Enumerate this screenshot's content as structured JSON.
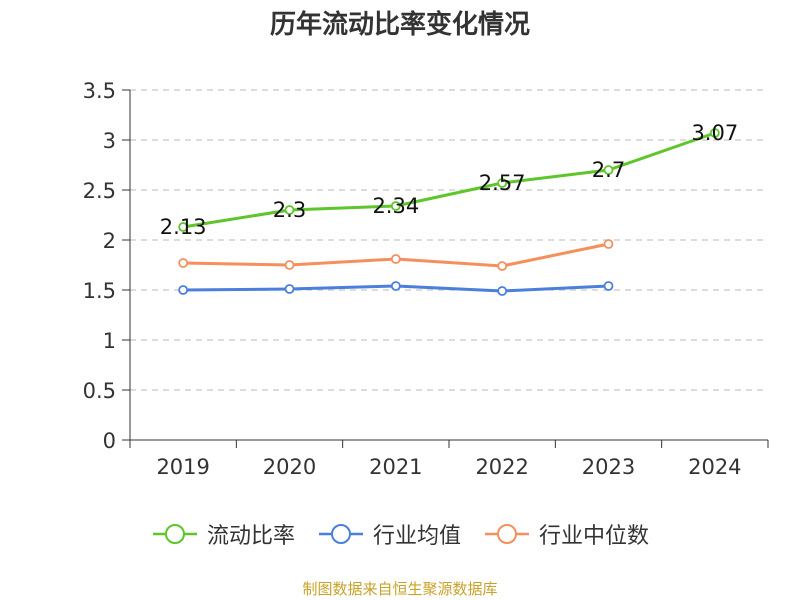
{
  "chart_data": {
    "type": "line",
    "title": "历年流动比率变化情况",
    "categories": [
      "2019",
      "2020",
      "2021",
      "2022",
      "2023",
      "2024"
    ],
    "ylim": [
      0,
      3.5
    ],
    "yticks": [
      "0",
      "0.5",
      "1",
      "1.5",
      "2",
      "2.5",
      "3",
      "3.5"
    ],
    "grid": true,
    "legend_position": "bottom",
    "series": [
      {
        "name": "流动比率",
        "color": "#5ec52b",
        "values": [
          2.13,
          2.3,
          2.34,
          2.57,
          2.7,
          3.07
        ],
        "labels": [
          "2.13",
          "2.3",
          "2.34",
          "2.57",
          "2.7",
          "3.07"
        ]
      },
      {
        "name": "行业均值",
        "color": "#4a7fdb",
        "values": [
          1.5,
          1.51,
          1.54,
          1.49,
          1.54,
          null
        ]
      },
      {
        "name": "行业中位数",
        "color": "#f58f5b",
        "values": [
          1.77,
          1.75,
          1.81,
          1.74,
          1.96,
          null
        ]
      }
    ],
    "source": "制图数据来自恒生聚源数据库"
  }
}
